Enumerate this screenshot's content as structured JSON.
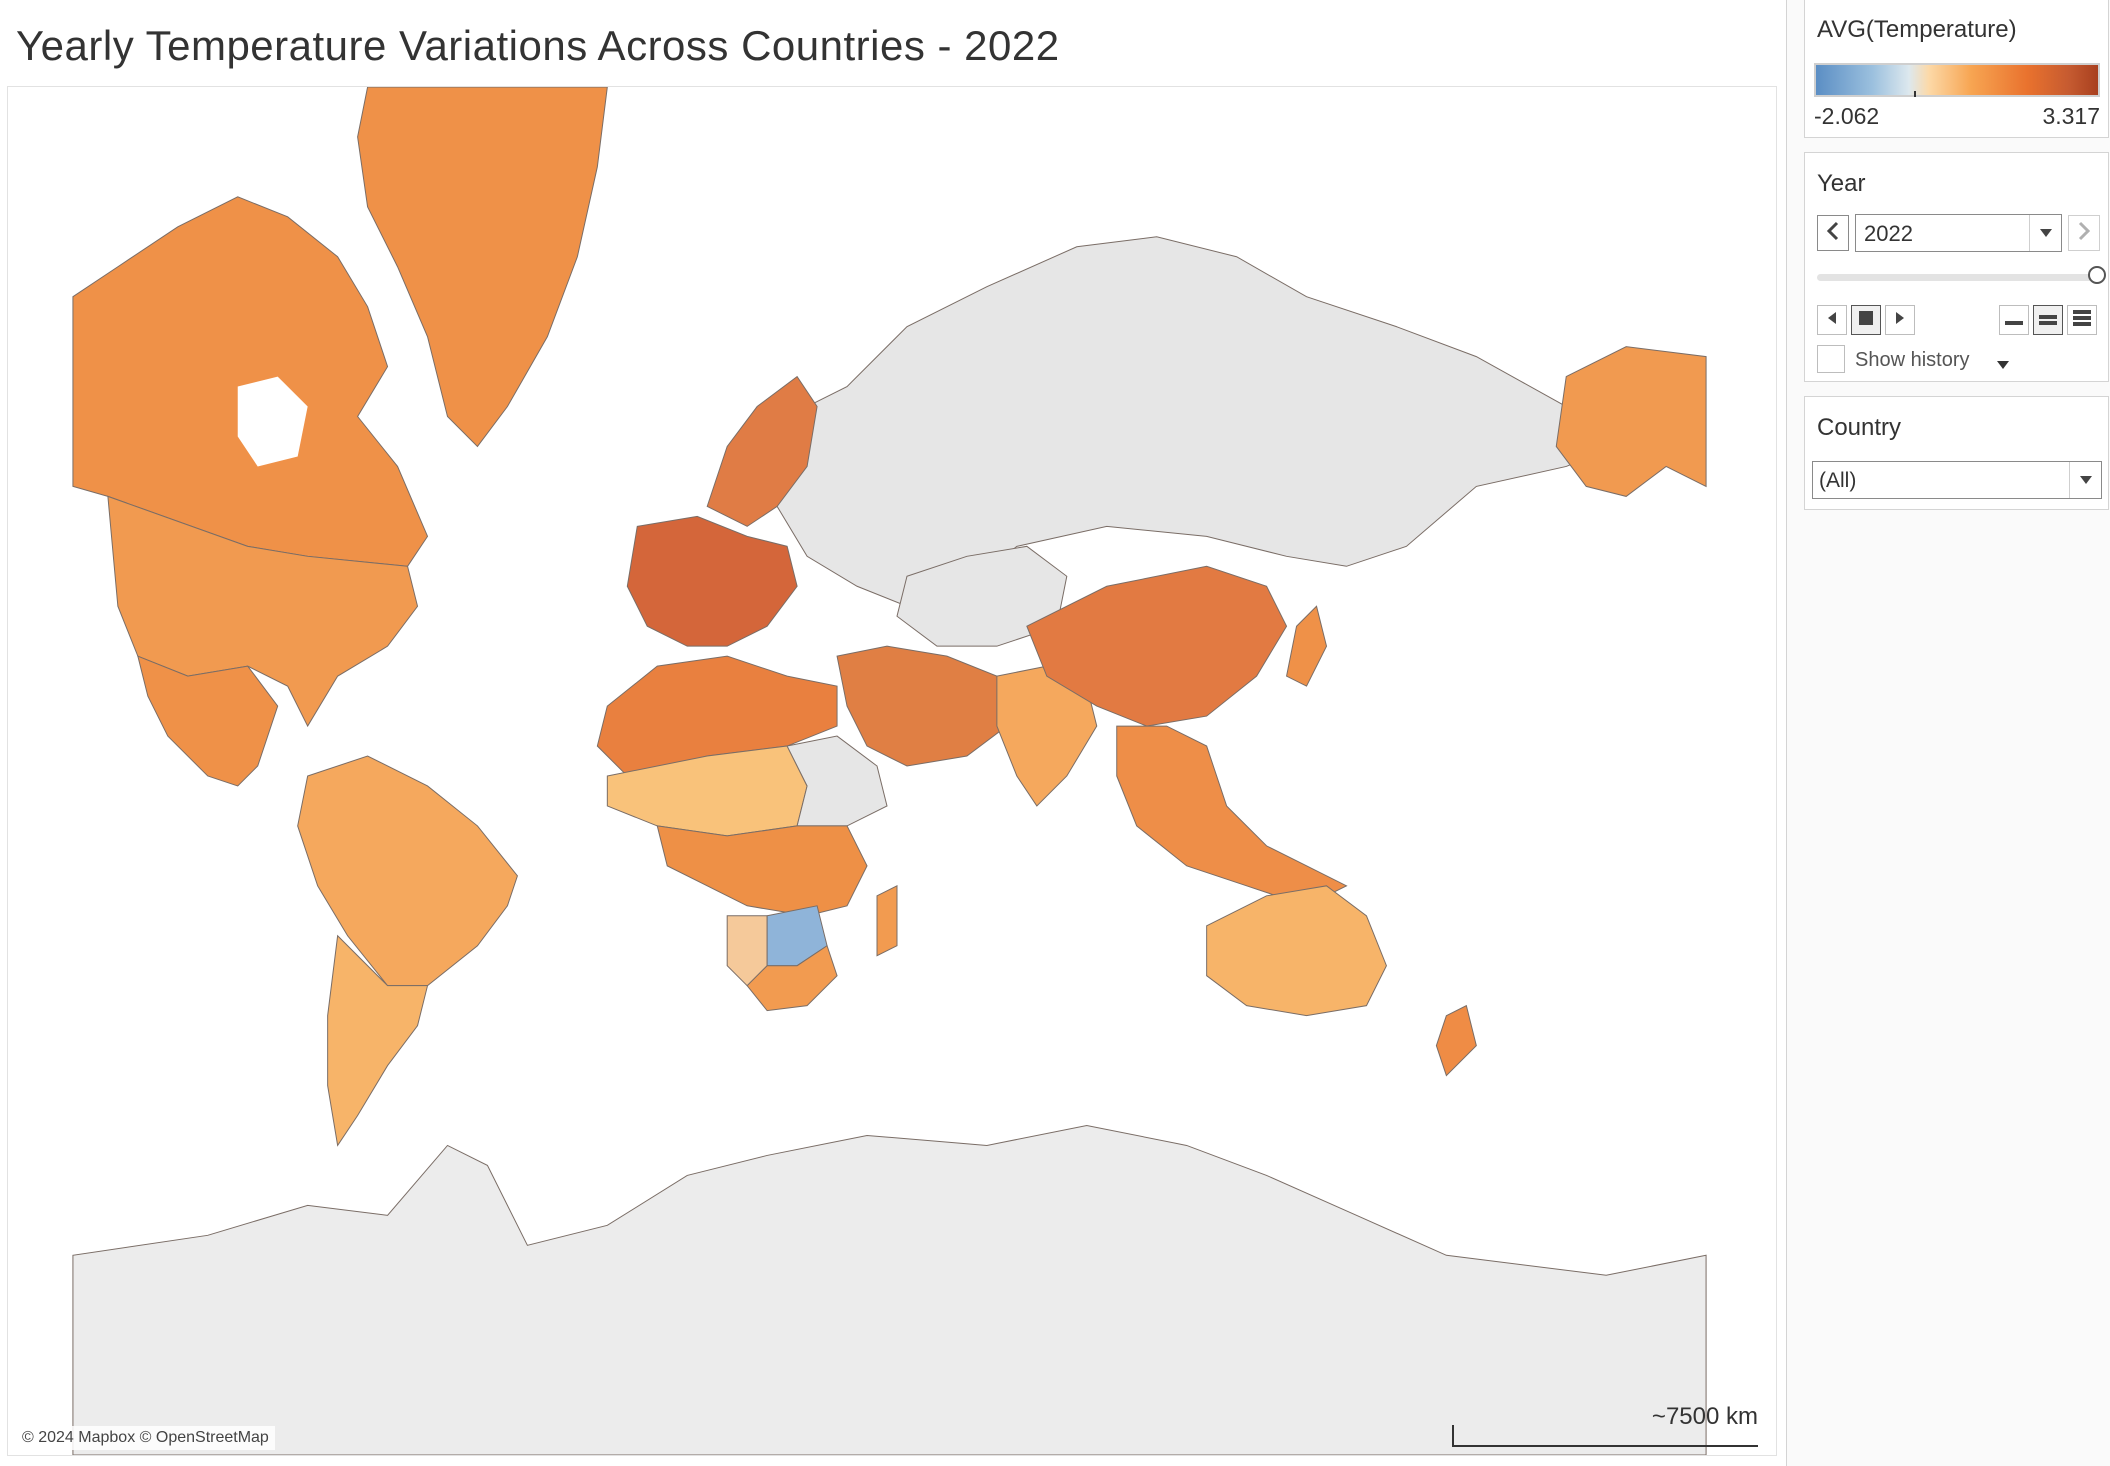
{
  "title": "Yearly Temperature Variations Across Countries - 2022",
  "map": {
    "attribution": "© 2024 Mapbox © OpenStreetMap",
    "scale_label": "~7500 km",
    "measure": "AVG(Temperature)",
    "no_data_color": "#e6e6e6",
    "border_color": "#7a6d66"
  },
  "legend": {
    "title": "AVG(Temperature)",
    "min_label": "-2.062",
    "max_label": "3.317",
    "min_value": -2.062,
    "max_value": 3.317,
    "colors": [
      "#5b8ec4",
      "#9bc0de",
      "#dde8ee",
      "#fcd9a8",
      "#f7a552",
      "#e9722e",
      "#c55a30",
      "#a8401f"
    ]
  },
  "year_filter": {
    "title": "Year",
    "selected": "2022",
    "slider_fraction": 1.0,
    "show_history_label": "Show history",
    "show_history_checked": false,
    "icons": {
      "prev": "chevron-left-icon",
      "next": "chevron-right-icon",
      "dropdown": "caret-down-icon",
      "back": "play-back-icon",
      "stop": "stop-icon",
      "forward": "play-forward-icon",
      "speed_slow": "speed-slow-icon",
      "speed_medium": "speed-medium-icon",
      "speed_fast": "speed-fast-icon"
    }
  },
  "country_filter": {
    "title": "Country",
    "selected": "(All)"
  },
  "regions": [
    {
      "id": "canada",
      "fill": "#ef9148"
    },
    {
      "id": "greenland",
      "fill": "#ef9148"
    },
    {
      "id": "usa",
      "fill": "#f19a50"
    },
    {
      "id": "mexico",
      "fill": "#ef9148"
    },
    {
      "id": "alaska",
      "fill": "#f19a50"
    },
    {
      "id": "south-america-north",
      "fill": "#f5a85d"
    },
    {
      "id": "south-america-south",
      "fill": "#f7b469"
    },
    {
      "id": "europe-west",
      "fill": "#d4663a"
    },
    {
      "id": "scandinavia",
      "fill": "#e07c45"
    },
    {
      "id": "north-africa",
      "fill": "#e9803f"
    },
    {
      "id": "sahel",
      "fill": "#f9c27a"
    },
    {
      "id": "central-africa",
      "fill": "#ee9046"
    },
    {
      "id": "botswana",
      "fill": "#8fb4d9"
    },
    {
      "id": "namibia",
      "fill": "#f5c99a"
    },
    {
      "id": "southern-africa",
      "fill": "#f29b50"
    },
    {
      "id": "middle-east",
      "fill": "#e07f44"
    },
    {
      "id": "india",
      "fill": "#f5a85d"
    },
    {
      "id": "china",
      "fill": "#e27a42"
    },
    {
      "id": "southeast-asia",
      "fill": "#ee8e48"
    },
    {
      "id": "japan",
      "fill": "#ef9148"
    },
    {
      "id": "australia",
      "fill": "#f7b469"
    },
    {
      "id": "new-zealand",
      "fill": "#ef8c45"
    },
    {
      "id": "madagascar",
      "fill": "#f29b50"
    },
    {
      "id": "russia",
      "fill": "#e6e6e6"
    },
    {
      "id": "antarctica",
      "fill": "#ececec"
    },
    {
      "id": "sudan-ethiopia",
      "fill": "#e6e6e6"
    }
  ]
}
